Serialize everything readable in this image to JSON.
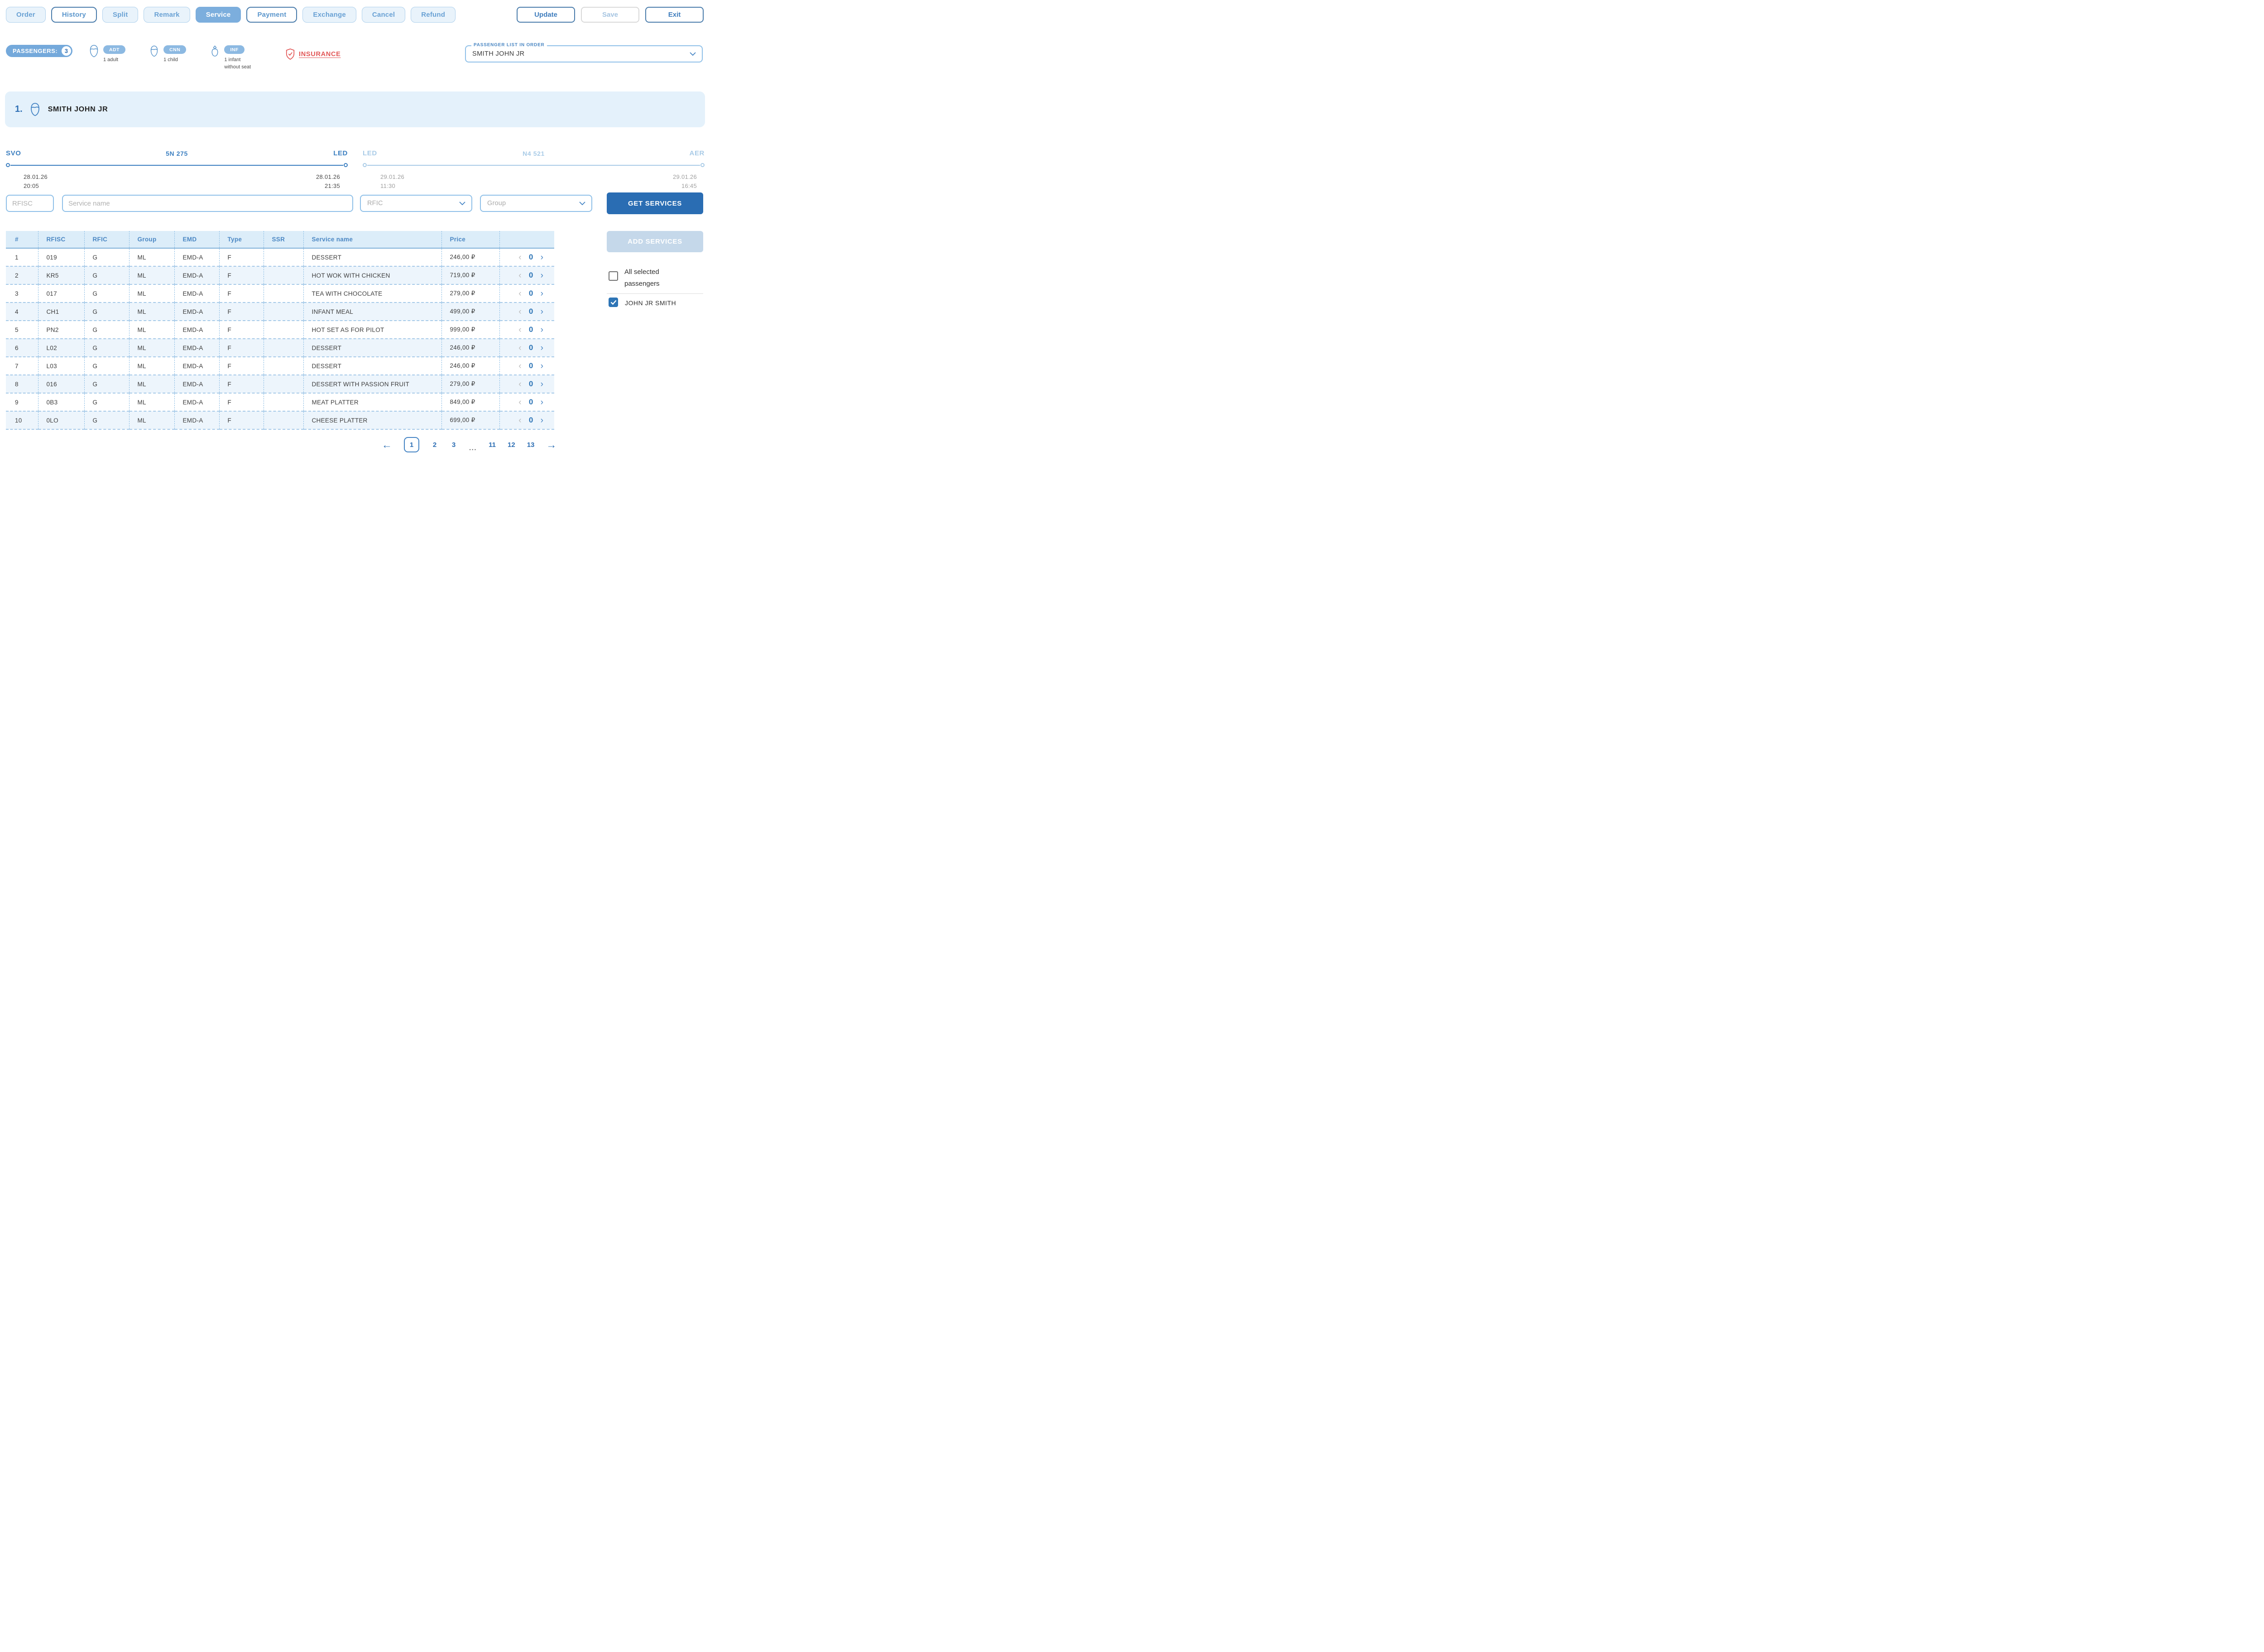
{
  "colors": {
    "accent": "#2e6fb4",
    "active_tab": "#7caedd",
    "get_services_bg": "#2a6db3",
    "add_services_bg": "#c5d8ea",
    "insurance_red": "#e25757",
    "table_header_bg": "#dcedf9",
    "row_alt_bg": "#edf5fc",
    "dashed_border": "#8bbde4"
  },
  "toolbar": {
    "tabs": [
      {
        "label": "Order",
        "variant": "soft"
      },
      {
        "label": "History",
        "variant": "outline"
      },
      {
        "label": "Split",
        "variant": "soft"
      },
      {
        "label": "Remark",
        "variant": "soft"
      },
      {
        "label": "Service",
        "variant": "active"
      },
      {
        "label": "Payment",
        "variant": "outline"
      },
      {
        "label": "Exchange",
        "variant": "soft"
      },
      {
        "label": "Cancel",
        "variant": "soft"
      },
      {
        "label": "Refund",
        "variant": "soft"
      }
    ],
    "actions": [
      {
        "label": "Update",
        "variant": "outline-strong"
      },
      {
        "label": "Save",
        "variant": "disabled"
      },
      {
        "label": "Exit",
        "variant": "outline-strong"
      }
    ]
  },
  "passengers_bar": {
    "counter_label": "PASSENGERS:",
    "counter_value": "3",
    "types": [
      {
        "icon": "adult-icon",
        "badge": "ADT",
        "caption_lines": [
          "1 adult"
        ]
      },
      {
        "icon": "child-icon",
        "badge": "CNN",
        "caption_lines": [
          "1 child"
        ]
      },
      {
        "icon": "infant-icon",
        "badge": "INF",
        "caption_lines": [
          "1 infant",
          "without seat"
        ]
      }
    ],
    "insurance_label": "INSURANCE",
    "passenger_select": {
      "label": "PASSENGER LIST IN ORDER",
      "value": "SMITH JOHN JR"
    }
  },
  "passenger_banner": {
    "index": "1.",
    "name": "SMITH JOHN JR"
  },
  "segments": [
    {
      "from": "SVO",
      "flight": "5N 275",
      "to": "LED",
      "dep_date": "28.01.26",
      "dep_time": "20:05",
      "arr_date": "28.01.26",
      "arr_time": "21:35",
      "state": "active"
    },
    {
      "from": "LED",
      "flight": "N4 521",
      "to": "AER",
      "dep_date": "29.01.26",
      "dep_time": "11:30",
      "arr_date": "29.01.26",
      "arr_time": "16:45",
      "state": "muted"
    }
  ],
  "filters": {
    "rfisc_placeholder": "RFISC",
    "service_name_placeholder": "Service name",
    "rfic_placeholder": "RFIC",
    "group_placeholder": "Group",
    "get_services_label": "GET SERVICES"
  },
  "table": {
    "headers": [
      "#",
      "RFISC",
      "RFIC",
      "Group",
      "EMD",
      "Type",
      "SSR",
      "Service name",
      "Price"
    ],
    "rows": [
      {
        "num": "1",
        "rfisc": "019",
        "rfic": "G",
        "group": "ML",
        "emd": "EMD-A",
        "type": "F",
        "ssr": "",
        "service": "DESSERT",
        "price": "246,00 ₽",
        "qty": "0"
      },
      {
        "num": "2",
        "rfisc": "KR5",
        "rfic": "G",
        "group": "ML",
        "emd": "EMD-A",
        "type": "F",
        "ssr": "",
        "service": "HOT WOK WITH CHICKEN",
        "price": "719,00 ₽",
        "qty": "0"
      },
      {
        "num": "3",
        "rfisc": "017",
        "rfic": "G",
        "group": "ML",
        "emd": "EMD-A",
        "type": "F",
        "ssr": "",
        "service": "TEA WITH CHOCOLATE",
        "price": "279,00 ₽",
        "qty": "0"
      },
      {
        "num": "4",
        "rfisc": "CH1",
        "rfic": "G",
        "group": "ML",
        "emd": "EMD-A",
        "type": "F",
        "ssr": "",
        "service": "INFANT MEAL",
        "price": "499,00 ₽",
        "qty": "0"
      },
      {
        "num": "5",
        "rfisc": "PN2",
        "rfic": "G",
        "group": "ML",
        "emd": "EMD-A",
        "type": "F",
        "ssr": "",
        "service": "HOT SET AS FOR PILOT",
        "price": "999,00 ₽",
        "qty": "0"
      },
      {
        "num": "6",
        "rfisc": "L02",
        "rfic": "G",
        "group": "ML",
        "emd": "EMD-A",
        "type": "F",
        "ssr": "",
        "service": "DESSERT",
        "price": "246,00 ₽",
        "qty": "0"
      },
      {
        "num": "7",
        "rfisc": "L03",
        "rfic": "G",
        "group": "ML",
        "emd": "EMD-A",
        "type": "F",
        "ssr": "",
        "service": "DESSERT",
        "price": "246,00 ₽",
        "qty": "0"
      },
      {
        "num": "8",
        "rfisc": "016",
        "rfic": "G",
        "group": "ML",
        "emd": "EMD-A",
        "type": "F",
        "ssr": "",
        "service": "DESSERT WITH PASSION FRUIT",
        "price": "279,00 ₽",
        "qty": "0"
      },
      {
        "num": "9",
        "rfisc": "0B3",
        "rfic": "G",
        "group": "ML",
        "emd": "EMD-A",
        "type": "F",
        "ssr": "",
        "service": "MEAT PLATTER",
        "price": "849,00 ₽",
        "qty": "0"
      },
      {
        "num": "10",
        "rfisc": "0LO",
        "rfic": "G",
        "group": "ML",
        "emd": "EMD-A",
        "type": "F",
        "ssr": "",
        "service": "CHEESE PLATTER",
        "price": "699,00 ₽",
        "qty": "0"
      }
    ]
  },
  "side_panel": {
    "add_services_label": "ADD SERVICES",
    "all_selected_label": "All selected passengers",
    "all_selected_checked": false,
    "passenger_checkbox_label": "JOHN JR SMITH",
    "passenger_checkbox_checked": true
  },
  "pagination": {
    "prev": "←",
    "pages": [
      "1",
      "2",
      "3",
      "…",
      "11",
      "12",
      "13"
    ],
    "current": "1",
    "next": "→"
  }
}
